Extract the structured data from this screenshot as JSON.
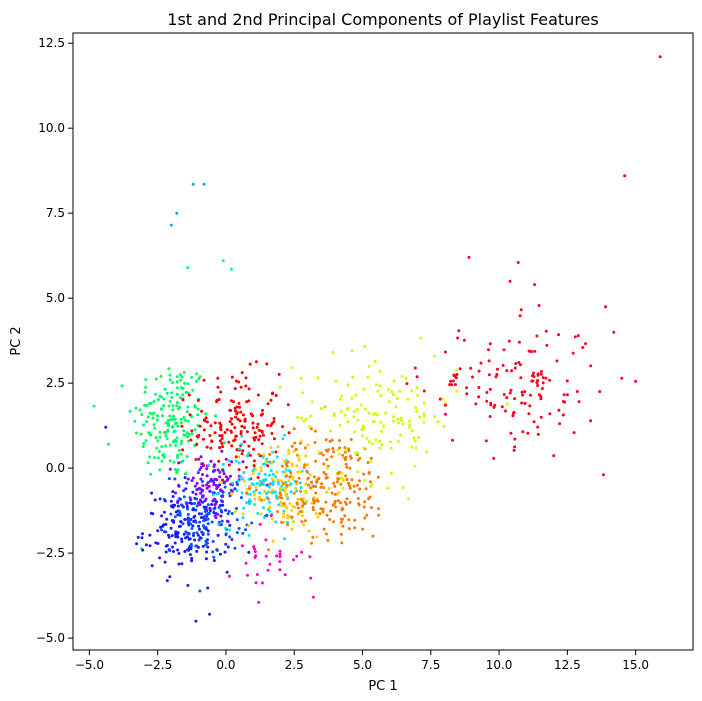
{
  "chart_data": {
    "type": "scatter",
    "title": "1st and 2nd Principal Components of Playlist Features",
    "xlabel": "PC 1",
    "ylabel": "PC 2",
    "xlim": [
      -5.6,
      17.1
    ],
    "ylim": [
      -5.35,
      12.8
    ],
    "xticks": [
      -5.0,
      -2.5,
      0.0,
      2.5,
      5.0,
      7.5,
      10.0,
      12.5,
      15.0
    ],
    "xtick_labels": [
      "−5.0",
      "−2.5",
      "0.0",
      "2.5",
      "5.0",
      "7.5",
      "10.0",
      "12.5",
      "15.0"
    ],
    "yticks": [
      -5.0,
      -2.5,
      0.0,
      2.5,
      5.0,
      7.5,
      10.0,
      12.5
    ],
    "ytick_labels": [
      "−5.0",
      "−2.5",
      "0.0",
      "2.5",
      "5.0",
      "7.5",
      "10.0",
      "12.5"
    ],
    "grid": false,
    "legend": "none",
    "marker_size": 1.5,
    "clusters": [
      {
        "color": "#00ff66",
        "center": [
          -2.0,
          1.4
        ],
        "spread": [
          0.7,
          0.9
        ],
        "count": 180
      },
      {
        "color": "#ff0000",
        "center": [
          0.4,
          1.2
        ],
        "spread": [
          0.8,
          0.8
        ],
        "count": 170
      },
      {
        "color": "#1a1aff",
        "center": [
          -1.4,
          -1.8
        ],
        "spread": [
          0.8,
          0.6
        ],
        "count": 180
      },
      {
        "color": "#0055ff",
        "center": [
          -0.6,
          -1.3
        ],
        "spread": [
          0.7,
          0.6
        ],
        "count": 120
      },
      {
        "color": "#8800ff",
        "center": [
          -0.6,
          -0.6
        ],
        "spread": [
          0.6,
          0.5
        ],
        "count": 90
      },
      {
        "color": "#00e5ff",
        "center": [
          1.4,
          -0.5
        ],
        "spread": [
          0.8,
          0.6
        ],
        "count": 120
      },
      {
        "color": "#ffcc00",
        "center": [
          2.3,
          -0.6
        ],
        "spread": [
          0.8,
          0.7
        ],
        "count": 120
      },
      {
        "color": "#ff7700",
        "center": [
          3.8,
          -0.5
        ],
        "spread": [
          1.1,
          0.8
        ],
        "count": 200
      },
      {
        "color": "#ccff00",
        "center": [
          5.5,
          1.5
        ],
        "spread": [
          1.5,
          0.9
        ],
        "count": 150
      },
      {
        "color": "#ff00cc",
        "center": [
          1.5,
          -2.6
        ],
        "spread": [
          0.7,
          0.5
        ],
        "count": 30
      },
      {
        "color": "#ff0022",
        "center": [
          10.5,
          2.4
        ],
        "spread": [
          1.6,
          0.9
        ],
        "count": 140
      }
    ],
    "outliers": [
      {
        "x": 15.9,
        "y": 12.1,
        "color": "#ff0022"
      },
      {
        "x": 14.6,
        "y": 8.6,
        "color": "#ff0022"
      },
      {
        "x": -1.2,
        "y": 8.35,
        "color": "#00aaff"
      },
      {
        "x": -0.8,
        "y": 8.35,
        "color": "#00aaff"
      },
      {
        "x": -1.8,
        "y": 7.5,
        "color": "#00aaff"
      },
      {
        "x": -2.0,
        "y": 7.15,
        "color": "#00aaff"
      },
      {
        "x": 8.9,
        "y": 6.2,
        "color": "#ff0022"
      },
      {
        "x": 10.7,
        "y": 6.05,
        "color": "#ff0022"
      },
      {
        "x": -1.4,
        "y": 5.9,
        "color": "#00ff66"
      },
      {
        "x": -0.1,
        "y": 6.1,
        "color": "#00ff66"
      },
      {
        "x": 0.2,
        "y": 5.85,
        "color": "#00ff66"
      },
      {
        "x": 11.3,
        "y": 5.4,
        "color": "#ff0022"
      },
      {
        "x": 10.4,
        "y": 5.5,
        "color": "#ff0022"
      },
      {
        "x": 15.0,
        "y": 2.55,
        "color": "#ff0022"
      },
      {
        "x": -4.4,
        "y": 1.2,
        "color": "#1a1aff"
      },
      {
        "x": -4.3,
        "y": 0.7,
        "color": "#00ff66"
      },
      {
        "x": -1.1,
        "y": -4.5,
        "color": "#1a1aff"
      },
      {
        "x": -0.6,
        "y": -4.3,
        "color": "#1a1aff"
      },
      {
        "x": 1.2,
        "y": -3.95,
        "color": "#ff00cc"
      },
      {
        "x": 3.2,
        "y": -3.8,
        "color": "#ff00cc"
      },
      {
        "x": 13.9,
        "y": 4.75,
        "color": "#ff0022"
      },
      {
        "x": 14.2,
        "y": 4.0,
        "color": "#ff0022"
      },
      {
        "x": 12.9,
        "y": 3.9,
        "color": "#ff0022"
      }
    ]
  }
}
